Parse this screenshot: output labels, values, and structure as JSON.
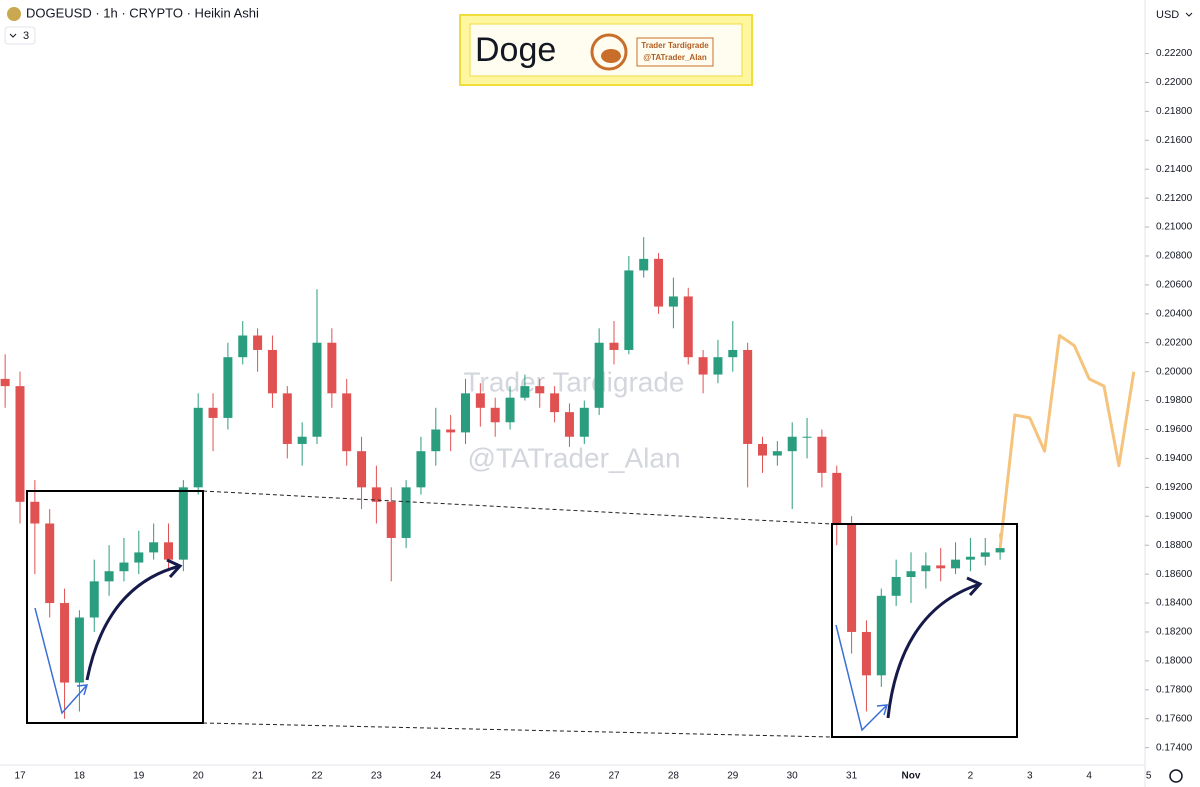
{
  "chart_data": {
    "type": "candlestick",
    "title": "DOGEUSD · 1h · CRYPTO · Heikin Ashi",
    "indicator_count": "3",
    "currency": "USD",
    "annotations": {
      "box_title": "Doge",
      "box_brand": "Trader Tardigrade",
      "box_handle": "@TATrader_Alan",
      "watermark_brand": "Trader Tardigrade",
      "watermark_handle": "@TATrader_Alan"
    },
    "up_color": "#2a9d7f",
    "down_color": "#e05252",
    "grid": false,
    "categories": [
      null,
      "17",
      null,
      null,
      null,
      "18",
      null,
      null,
      null,
      "19",
      null,
      null,
      null,
      "20",
      null,
      null,
      null,
      "21",
      null,
      null,
      null,
      "22",
      null,
      null,
      null,
      "23",
      null,
      null,
      null,
      "24",
      null,
      null,
      null,
      "25",
      null,
      null,
      null,
      "26",
      null,
      null,
      null,
      "27",
      null,
      null,
      null,
      "28",
      null,
      null,
      null,
      "29",
      null,
      null,
      null,
      "30",
      null,
      null,
      null,
      "31",
      null,
      null,
      null,
      "Nov",
      null,
      null,
      null,
      "2",
      null,
      null,
      null,
      "3",
      null,
      null,
      null,
      "4",
      null,
      null,
      null,
      "5"
    ],
    "open": [
      0.1995,
      0.199,
      0.191,
      0.1895,
      0.184,
      0.1785,
      0.183,
      0.1855,
      0.1862,
      0.1868,
      0.1875,
      0.1882,
      0.187,
      0.192,
      0.1975,
      0.1968,
      0.201,
      0.2025,
      0.2015,
      0.1985,
      0.195,
      0.1955,
      0.202,
      0.1985,
      0.1945,
      0.192,
      0.191,
      0.1885,
      0.192,
      0.1945,
      0.196,
      0.1958,
      0.1985,
      0.1975,
      0.1965,
      0.1982,
      0.199,
      0.1985,
      0.1972,
      0.1955,
      0.1975,
      0.202,
      0.2015,
      0.207,
      0.2078,
      0.2045,
      0.2052,
      0.201,
      0.1998,
      0.201,
      0.2015,
      0.195,
      0.1942,
      0.1945,
      0.1955,
      0.1955,
      0.193,
      0.1895,
      0.182,
      0.179,
      0.1845,
      0.1858,
      0.1862,
      0.1866,
      0.1864,
      0.187,
      0.1872,
      0.1875,
      null,
      null,
      null,
      null,
      null,
      null,
      null,
      null,
      null,
      null
    ],
    "high": [
      0.2012,
      0.2,
      0.1925,
      0.1905,
      0.185,
      0.1835,
      0.187,
      0.188,
      0.1885,
      0.189,
      0.1895,
      0.1895,
      0.1925,
      0.1985,
      0.1985,
      0.202,
      0.2035,
      0.203,
      0.2025,
      0.199,
      0.1965,
      0.2057,
      0.203,
      0.1995,
      0.1955,
      0.1935,
      0.192,
      0.1925,
      0.1955,
      0.1975,
      0.197,
      0.1995,
      0.1992,
      0.1982,
      0.199,
      0.1998,
      0.1995,
      0.199,
      0.1978,
      0.198,
      0.203,
      0.2035,
      0.208,
      0.2093,
      0.2082,
      0.2065,
      0.2058,
      0.2015,
      0.2022,
      0.2035,
      0.202,
      0.1955,
      0.1952,
      0.1965,
      0.1968,
      0.196,
      0.1935,
      0.19,
      0.1828,
      0.185,
      0.187,
      0.1875,
      0.1875,
      0.1878,
      0.1882,
      0.1885,
      0.1885,
      0.1888,
      null,
      null,
      null,
      null,
      null,
      null,
      null,
      null,
      null,
      null
    ],
    "low": [
      0.1975,
      0.1895,
      0.186,
      0.183,
      0.176,
      0.1765,
      0.182,
      0.1845,
      0.1855,
      0.186,
      0.187,
      0.1862,
      0.1862,
      0.1915,
      0.1945,
      0.196,
      0.2005,
      0.2,
      0.1975,
      0.194,
      0.1935,
      0.195,
      0.1975,
      0.1935,
      0.1905,
      0.1895,
      0.1855,
      0.1878,
      0.1915,
      0.1935,
      0.1945,
      0.195,
      0.1962,
      0.1955,
      0.196,
      0.198,
      0.1975,
      0.1965,
      0.1948,
      0.195,
      0.197,
      0.2005,
      0.2012,
      0.2065,
      0.204,
      0.203,
      0.2005,
      0.1985,
      0.1992,
      0.2,
      0.192,
      0.193,
      0.1935,
      0.1905,
      0.194,
      0.192,
      0.188,
      0.1805,
      0.1765,
      0.1782,
      0.1838,
      0.184,
      0.185,
      0.1855,
      0.186,
      0.1862,
      0.1866,
      0.187,
      null,
      null,
      null,
      null,
      null,
      null,
      null,
      null,
      null,
      null
    ],
    "close": [
      0.199,
      0.191,
      0.1895,
      0.184,
      0.1785,
      0.183,
      0.1855,
      0.1862,
      0.1868,
      0.1875,
      0.1882,
      0.187,
      0.192,
      0.1975,
      0.1968,
      0.201,
      0.2025,
      0.2015,
      0.1985,
      0.195,
      0.1955,
      0.202,
      0.1985,
      0.1945,
      0.192,
      0.191,
      0.1885,
      0.192,
      0.1945,
      0.196,
      0.1958,
      0.1985,
      0.1975,
      0.1965,
      0.1982,
      0.199,
      0.1985,
      0.1972,
      0.1955,
      0.1975,
      0.202,
      0.2015,
      0.207,
      0.2078,
      0.2045,
      0.2052,
      0.201,
      0.1998,
      0.201,
      0.2015,
      0.195,
      0.1942,
      0.1945,
      0.1955,
      0.1955,
      0.193,
      0.1895,
      0.182,
      0.179,
      0.1845,
      0.1858,
      0.1862,
      0.1866,
      0.1864,
      0.187,
      0.1872,
      0.1875,
      0.1878,
      null,
      null,
      null,
      null,
      null,
      null,
      null,
      null,
      null,
      null
    ],
    "projection": {
      "color": "#f5c37c",
      "values": [
        null,
        null,
        null,
        null,
        null,
        null,
        null,
        null,
        null,
        null,
        null,
        null,
        null,
        null,
        null,
        null,
        null,
        null,
        null,
        null,
        null,
        null,
        null,
        null,
        null,
        null,
        null,
        null,
        null,
        null,
        null,
        null,
        null,
        null,
        null,
        null,
        null,
        null,
        null,
        null,
        null,
        null,
        null,
        null,
        null,
        null,
        null,
        null,
        null,
        null,
        null,
        null,
        null,
        null,
        null,
        null,
        null,
        null,
        null,
        null,
        null,
        null,
        null,
        null,
        null,
        null,
        null,
        0.1878,
        0.197,
        0.1968,
        0.1945,
        0.2025,
        0.2018,
        0.1995,
        0.199,
        0.1935,
        0.2,
        null
      ]
    },
    "ylim": [
      0.1728,
      0.2257
    ],
    "yticks": [
      {
        "value": 0.174,
        "label": "0.17400"
      },
      {
        "value": 0.176,
        "label": "0.17600"
      },
      {
        "value": 0.178,
        "label": "0.17800"
      },
      {
        "value": 0.18,
        "label": "0.18000"
      },
      {
        "value": 0.182,
        "label": "0.18200"
      },
      {
        "value": 0.184,
        "label": "0.18400"
      },
      {
        "value": 0.186,
        "label": "0.18600"
      },
      {
        "value": 0.188,
        "label": "0.18800"
      },
      {
        "value": 0.19,
        "label": "0.19000"
      },
      {
        "value": 0.192,
        "label": "0.19200"
      },
      {
        "value": 0.194,
        "label": "0.19400"
      },
      {
        "value": 0.196,
        "label": "0.19600"
      },
      {
        "value": 0.198,
        "label": "0.19800"
      },
      {
        "value": 0.2,
        "label": "0.20000"
      },
      {
        "value": 0.202,
        "label": "0.20200"
      },
      {
        "value": 0.204,
        "label": "0.20400"
      },
      {
        "value": 0.206,
        "label": "0.20600"
      },
      {
        "value": 0.208,
        "label": "0.20800"
      },
      {
        "value": 0.21,
        "label": "0.21000"
      },
      {
        "value": 0.212,
        "label": "0.21200"
      },
      {
        "value": 0.214,
        "label": "0.21400"
      },
      {
        "value": 0.216,
        "label": "0.21600"
      },
      {
        "value": 0.218,
        "label": "0.21800"
      },
      {
        "value": 0.22,
        "label": "0.22000"
      },
      {
        "value": 0.222,
        "label": "0.22200"
      }
    ]
  }
}
